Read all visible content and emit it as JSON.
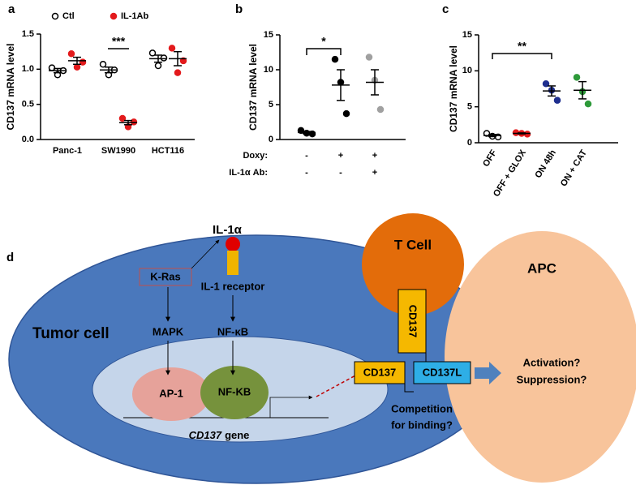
{
  "chart_data": [
    {
      "type": "dot",
      "panel": "a",
      "ylabel": "CD137 mRNA level",
      "categories": [
        "Panc-1",
        "SW1990",
        "HCT116"
      ],
      "series": [
        {
          "name": "Ctl",
          "color": "#000000",
          "open": true,
          "values": [
            [
              1.02,
              0.92,
              0.98
            ],
            [
              1.07,
              0.92,
              0.99
            ],
            [
              1.23,
              1.05,
              1.16
            ]
          ],
          "mean": [
            0.98,
            0.99,
            1.15
          ],
          "sem": [
            0.03,
            0.04,
            0.05
          ]
        },
        {
          "name": "IL-1Ab",
          "color": "#e31a1c",
          "open": false,
          "values": [
            [
              1.22,
              1.03,
              1.1
            ],
            [
              0.3,
              0.18,
              0.25
            ],
            [
              1.3,
              0.95,
              1.12
            ]
          ],
          "mean": [
            1.12,
            0.24,
            1.15
          ],
          "sem": [
            0.05,
            0.03,
            0.1
          ]
        }
      ],
      "ylim": [
        0,
        1.5
      ],
      "yticks": [
        {
          "value": 0,
          "label": "0.0"
        },
        0.5,
        {
          "value": 1,
          "label": "1.0"
        },
        1.5
      ],
      "annotation": "***"
    },
    {
      "type": "dot",
      "panel": "b",
      "ylabel": "CD137 mRNA level",
      "categories": [
        null,
        null,
        null
      ],
      "x_rows": [
        {
          "label": "Doxy:",
          "values": [
            "-",
            "+",
            "+"
          ]
        },
        {
          "label": "IL-1α Ab:",
          "values": [
            "-",
            "-",
            "+"
          ]
        }
      ],
      "values": [
        [
          1.3,
          0.9,
          0.8
        ],
        [
          11.5,
          8.2,
          3.7
        ],
        [
          11.8,
          8.5,
          4.3
        ]
      ],
      "mean": [
        1.0,
        7.8,
        8.2
      ],
      "sem": [
        0.15,
        2.2,
        1.8
      ],
      "color": [
        "#000000",
        "#000000",
        "#a0a0a0"
      ],
      "open": [
        false,
        false,
        false
      ],
      "ylim": [
        0,
        15
      ],
      "yticks": [
        0,
        5,
        10,
        15
      ],
      "annotation": "*"
    },
    {
      "type": "dot",
      "panel": "c",
      "ylabel": "CD137 mRNA level",
      "categories": [
        "OFF",
        "OFF + GLOX",
        "ON 48h",
        "ON + CAT"
      ],
      "values": [
        [
          1.3,
          0.9,
          0.8
        ],
        [
          1.4,
          1.3,
          1.2
        ],
        [
          8.2,
          7.3,
          5.9
        ],
        [
          9.1,
          7.1,
          5.4
        ]
      ],
      "mean": [
        1.0,
        1.3,
        7.2,
        7.3
      ],
      "sem": [
        0.15,
        0.06,
        0.7,
        1.2
      ],
      "color": [
        "#000000",
        "#e31a1c",
        "#1f2f8f",
        "#2e9a3a"
      ],
      "open": [
        true,
        false,
        false,
        false
      ],
      "ylim": [
        0,
        15
      ],
      "yticks": [
        0,
        5,
        10,
        15
      ],
      "annotation": "**"
    }
  ],
  "diagram": {
    "label": "d",
    "ligand": "IL-1α",
    "kras": "K-Ras",
    "receptor": "IL-1 receptor",
    "mapk": "MAPK",
    "nfkb_path": "NF-κB",
    "tumor": "Tumor cell",
    "ap1": "AP-1",
    "nfkb_tf": "NF-KB",
    "gene_name": "CD137",
    "gene_suffix": "gene",
    "tcell": "T Cell",
    "tcell_cd137": "CD137",
    "tumor_cd137": "CD137",
    "cd137l": "CD137L",
    "apc": "APC",
    "outcomes": [
      "Activation?",
      "Suppression?"
    ],
    "competition": [
      "Competition",
      "for binding?"
    ]
  }
}
